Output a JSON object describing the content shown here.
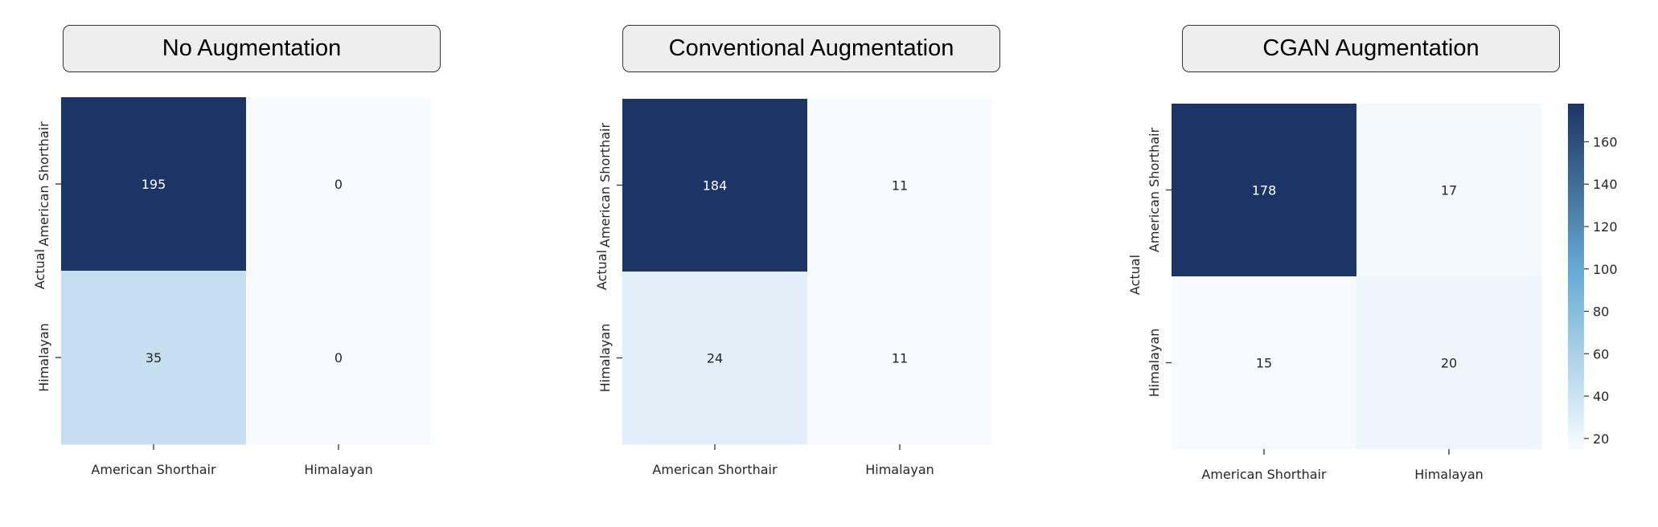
{
  "colors": {
    "cmap_low": "#f7fbff",
    "cmap_mid": "#6baed6",
    "cmap_high": "#1c3466",
    "text_dark": "#262626",
    "text_light": "#ffffff"
  },
  "chart_data": [
    {
      "type": "heatmap",
      "title": "No Augmentation",
      "ylabel": "Actual",
      "xlabel": "",
      "x_categories": [
        "American Shorthair",
        "Himalayan"
      ],
      "y_categories": [
        "American Shorthair",
        "Himalayan"
      ],
      "values": [
        [
          195,
          0
        ],
        [
          35,
          0
        ]
      ],
      "vmin": 0,
      "vmax": 195,
      "colorbar": false
    },
    {
      "type": "heatmap",
      "title": "Conventional Augmentation",
      "ylabel": "Actual",
      "xlabel": "",
      "x_categories": [
        "American Shorthair",
        "Himalayan"
      ],
      "y_categories": [
        "American Shorthair",
        "Himalayan"
      ],
      "values": [
        [
          184,
          11
        ],
        [
          24,
          11
        ]
      ],
      "vmin": 11,
      "vmax": 184,
      "colorbar": false
    },
    {
      "type": "heatmap",
      "title": "CGAN Augmentation",
      "ylabel": "Actual",
      "xlabel": "",
      "x_categories": [
        "American Shorthair",
        "Himalayan"
      ],
      "y_categories": [
        "American Shorthair",
        "Himalayan"
      ],
      "values": [
        [
          178,
          17
        ],
        [
          15,
          20
        ]
      ],
      "vmin": 15,
      "vmax": 178,
      "colorbar": true,
      "colorbar_ticks": [
        20,
        40,
        60,
        80,
        100,
        120,
        140,
        160
      ]
    }
  ]
}
